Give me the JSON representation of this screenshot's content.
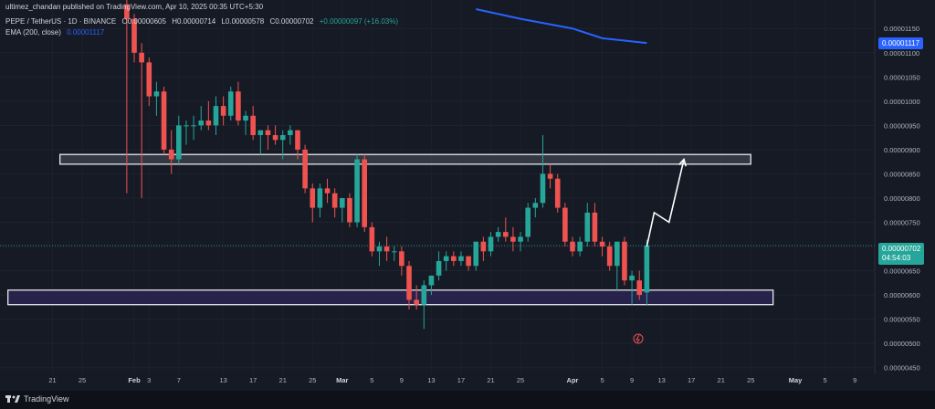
{
  "header": {
    "publisher": "ultimez_chandan published on TradingView.com, Apr 10, 2025 00:35 UTC+5:30",
    "symbol": "PEPE / TetherUS · 1D · BINANCE",
    "ohlc": {
      "o": "O0.00000605",
      "h": "H0.00000714",
      "l": "L0.00000578",
      "c": "C0.00000702",
      "chg": "+0.00000097 (+16.03%)"
    },
    "ema_label": "EMA (200, close)",
    "ema_value": "0.00001117"
  },
  "price_tags": {
    "ema": "0.00001117",
    "last": "0.00000702",
    "countdown": "04:54:03"
  },
  "footer": {
    "brand": "TradingView"
  },
  "colors": {
    "background": "#161a25",
    "up": "#26a69a",
    "down": "#ef5350",
    "ema": "#2962ff",
    "text": "#b2b5be",
    "zone_upper": "#3a3e48",
    "zone_lower": "#2a2550"
  },
  "chart_data": {
    "type": "candlestick",
    "x_ticks": [
      "21",
      "25",
      "Feb",
      "3",
      "7",
      "13",
      "17",
      "21",
      "25",
      "Mar",
      "5",
      "9",
      "13",
      "17",
      "21",
      "25",
      "Apr",
      "5",
      "9",
      "13",
      "17",
      "21",
      "25",
      "May",
      "5",
      "9"
    ],
    "y_ticks": [
      "0.00001150",
      "0.00001100",
      "0.00001050",
      "0.00001000",
      "0.00000950",
      "0.00000900",
      "0.00000850",
      "0.00000800",
      "0.00000750",
      "0.00000700",
      "0.00000650",
      "0.00000600",
      "0.00000550",
      "0.00000500",
      "0.00000450"
    ],
    "ylim": [
      4.4e-06,
      1.19e-05
    ],
    "candles": [
      {
        "date": "2025-01-31",
        "o": 1.2e-05,
        "h": 1.21e-05,
        "l": 8.1e-06,
        "c": 1.17e-05
      },
      {
        "date": "2025-02-01",
        "o": 1.17e-05,
        "h": 1.18e-05,
        "l": 1.08e-05,
        "c": 1.1e-05
      },
      {
        "date": "2025-02-02",
        "o": 1.1e-05,
        "h": 1.12e-05,
        "l": 8e-06,
        "c": 1.08e-05
      },
      {
        "date": "2025-02-03",
        "o": 1.08e-05,
        "h": 1.09e-05,
        "l": 9.9e-06,
        "c": 1.01e-05
      },
      {
        "date": "2025-02-04",
        "o": 1.01e-05,
        "h": 1.04e-05,
        "l": 9.7e-06,
        "c": 1.02e-05
      },
      {
        "date": "2025-02-05",
        "o": 1.02e-05,
        "h": 1.03e-05,
        "l": 8.9e-06,
        "c": 9e-06
      },
      {
        "date": "2025-02-06",
        "o": 9e-06,
        "h": 9.4e-06,
        "l": 8.5e-06,
        "c": 8.8e-06
      },
      {
        "date": "2025-02-07",
        "o": 8.8e-06,
        "h": 9.7e-06,
        "l": 8.7e-06,
        "c": 9.5e-06
      },
      {
        "date": "2025-02-08",
        "o": 9.5e-06,
        "h": 9.6e-06,
        "l": 9.1e-06,
        "c": 9.5e-06
      },
      {
        "date": "2025-02-09",
        "o": 9.5e-06,
        "h": 9.7e-06,
        "l": 9.2e-06,
        "c": 9.5e-06
      },
      {
        "date": "2025-02-10",
        "o": 9.5e-06,
        "h": 9.9e-06,
        "l": 9.4e-06,
        "c": 9.6e-06
      },
      {
        "date": "2025-02-11",
        "o": 9.6e-06,
        "h": 1e-05,
        "l": 9.4e-06,
        "c": 9.5e-06
      },
      {
        "date": "2025-02-12",
        "o": 9.5e-06,
        "h": 1.01e-05,
        "l": 9.3e-06,
        "c": 9.9e-06
      },
      {
        "date": "2025-02-13",
        "o": 9.9e-06,
        "h": 1.01e-05,
        "l": 9.5e-06,
        "c": 9.7e-06
      },
      {
        "date": "2025-02-14",
        "o": 9.7e-06,
        "h": 1.03e-05,
        "l": 9.6e-06,
        "c": 1.02e-05
      },
      {
        "date": "2025-02-15",
        "o": 1.02e-05,
        "h": 1.04e-05,
        "l": 9.5e-06,
        "c": 9.6e-06
      },
      {
        "date": "2025-02-16",
        "o": 9.6e-06,
        "h": 9.8e-06,
        "l": 9.3e-06,
        "c": 9.7e-06
      },
      {
        "date": "2025-02-17",
        "o": 9.7e-06,
        "h": 9.9e-06,
        "l": 9.2e-06,
        "c": 9.3e-06
      },
      {
        "date": "2025-02-18",
        "o": 9.3e-06,
        "h": 9.4e-06,
        "l": 8.9e-06,
        "c": 9.4e-06
      },
      {
        "date": "2025-02-19",
        "o": 9.4e-06,
        "h": 9.5e-06,
        "l": 9e-06,
        "c": 9.3e-06
      },
      {
        "date": "2025-02-20",
        "o": 9.3e-06,
        "h": 9.5e-06,
        "l": 9.1e-06,
        "c": 9.2e-06
      },
      {
        "date": "2025-02-21",
        "o": 9.2e-06,
        "h": 9.4e-06,
        "l": 8.8e-06,
        "c": 9.3e-06
      },
      {
        "date": "2025-02-22",
        "o": 9.3e-06,
        "h": 9.5e-06,
        "l": 9.1e-06,
        "c": 9.4e-06
      },
      {
        "date": "2025-02-23",
        "o": 9.4e-06,
        "h": 9.4e-06,
        "l": 8.8e-06,
        "c": 9e-06
      },
      {
        "date": "2025-02-24",
        "o": 9e-06,
        "h": 9.1e-06,
        "l": 8.1e-06,
        "c": 8.2e-06
      },
      {
        "date": "2025-02-25",
        "o": 8.2e-06,
        "h": 8.3e-06,
        "l": 7.5e-06,
        "c": 7.8e-06
      },
      {
        "date": "2025-02-26",
        "o": 7.8e-06,
        "h": 8.3e-06,
        "l": 7.6e-06,
        "c": 8.2e-06
      },
      {
        "date": "2025-02-27",
        "o": 8.2e-06,
        "h": 8.4e-06,
        "l": 7.9e-06,
        "c": 8.1e-06
      },
      {
        "date": "2025-02-28",
        "o": 8.1e-06,
        "h": 8.2e-06,
        "l": 7.6e-06,
        "c": 7.8e-06
      },
      {
        "date": "2025-03-01",
        "o": 7.8e-06,
        "h": 8e-06,
        "l": 7.5e-06,
        "c": 8e-06
      },
      {
        "date": "2025-03-02",
        "o": 8e-06,
        "h": 8.1e-06,
        "l": 7.4e-06,
        "c": 7.5e-06
      },
      {
        "date": "2025-03-03",
        "o": 7.5e-06,
        "h": 8.9e-06,
        "l": 7.4e-06,
        "c": 8.8e-06
      },
      {
        "date": "2025-03-04",
        "o": 8.8e-06,
        "h": 8.9e-06,
        "l": 7.3e-06,
        "c": 7.4e-06
      },
      {
        "date": "2025-03-05",
        "o": 7.4e-06,
        "h": 7.5e-06,
        "l": 6.8e-06,
        "c": 6.9e-06
      },
      {
        "date": "2025-03-06",
        "o": 6.9e-06,
        "h": 7.1e-06,
        "l": 6.6e-06,
        "c": 7e-06
      },
      {
        "date": "2025-03-07",
        "o": 7e-06,
        "h": 7.2e-06,
        "l": 6.7e-06,
        "c": 6.9e-06
      },
      {
        "date": "2025-03-08",
        "o": 6.9e-06,
        "h": 7e-06,
        "l": 6.7e-06,
        "c": 6.9e-06
      },
      {
        "date": "2025-03-09",
        "o": 6.9e-06,
        "h": 7e-06,
        "l": 6.4e-06,
        "c": 6.6e-06
      },
      {
        "date": "2025-03-10",
        "o": 6.6e-06,
        "h": 6.7e-06,
        "l": 5.7e-06,
        "c": 5.9e-06
      },
      {
        "date": "2025-03-11",
        "o": 5.9e-06,
        "h": 6.2e-06,
        "l": 5.7e-06,
        "c": 5.8e-06
      },
      {
        "date": "2025-03-12",
        "o": 5.8e-06,
        "h": 6.3e-06,
        "l": 5.3e-06,
        "c": 6.2e-06
      },
      {
        "date": "2025-03-13",
        "o": 6.2e-06,
        "h": 6.4e-06,
        "l": 6e-06,
        "c": 6.4e-06
      },
      {
        "date": "2025-03-14",
        "o": 6.4e-06,
        "h": 6.9e-06,
        "l": 6.3e-06,
        "c": 6.7e-06
      },
      {
        "date": "2025-03-15",
        "o": 6.7e-06,
        "h": 6.9e-06,
        "l": 6.5e-06,
        "c": 6.8e-06
      },
      {
        "date": "2025-03-16",
        "o": 6.8e-06,
        "h": 6.9e-06,
        "l": 6.6e-06,
        "c": 6.7e-06
      },
      {
        "date": "2025-03-17",
        "o": 6.7e-06,
        "h": 6.9e-06,
        "l": 6.6e-06,
        "c": 6.8e-06
      },
      {
        "date": "2025-03-18",
        "o": 6.8e-06,
        "h": 6.8e-06,
        "l": 6.5e-06,
        "c": 6.6e-06
      },
      {
        "date": "2025-03-19",
        "o": 6.6e-06,
        "h": 7.1e-06,
        "l": 6.5e-06,
        "c": 7.1e-06
      },
      {
        "date": "2025-03-20",
        "o": 7.1e-06,
        "h": 7.2e-06,
        "l": 6.7e-06,
        "c": 6.9e-06
      },
      {
        "date": "2025-03-21",
        "o": 6.9e-06,
        "h": 7.3e-06,
        "l": 6.8e-06,
        "c": 7.2e-06
      },
      {
        "date": "2025-03-22",
        "o": 7.2e-06,
        "h": 7.4e-06,
        "l": 7.1e-06,
        "c": 7.3e-06
      },
      {
        "date": "2025-03-23",
        "o": 7.3e-06,
        "h": 7.6e-06,
        "l": 7.1e-06,
        "c": 7.2e-06
      },
      {
        "date": "2025-03-24",
        "o": 7.2e-06,
        "h": 7.4e-06,
        "l": 6.9e-06,
        "c": 7.1e-06
      },
      {
        "date": "2025-03-25",
        "o": 7.1e-06,
        "h": 7.3e-06,
        "l": 6.9e-06,
        "c": 7.2e-06
      },
      {
        "date": "2025-03-26",
        "o": 7.2e-06,
        "h": 7.9e-06,
        "l": 7.1e-06,
        "c": 7.8e-06
      },
      {
        "date": "2025-03-27",
        "o": 7.8e-06,
        "h": 8e-06,
        "l": 7.6e-06,
        "c": 7.9e-06
      },
      {
        "date": "2025-03-28",
        "o": 7.9e-06,
        "h": 9.3e-06,
        "l": 7.8e-06,
        "c": 8.5e-06
      },
      {
        "date": "2025-03-29",
        "o": 8.5e-06,
        "h": 8.7e-06,
        "l": 8.2e-06,
        "c": 8.4e-06
      },
      {
        "date": "2025-03-30",
        "o": 8.4e-06,
        "h": 8.5e-06,
        "l": 7.7e-06,
        "c": 7.8e-06
      },
      {
        "date": "2025-03-31",
        "o": 7.8e-06,
        "h": 7.9e-06,
        "l": 7e-06,
        "c": 7.1e-06
      },
      {
        "date": "2025-04-01",
        "o": 7.1e-06,
        "h": 7.2e-06,
        "l": 6.8e-06,
        "c": 6.9e-06
      },
      {
        "date": "2025-04-02",
        "o": 6.9e-06,
        "h": 7.2e-06,
        "l": 6.8e-06,
        "c": 7.1e-06
      },
      {
        "date": "2025-04-03",
        "o": 7.1e-06,
        "h": 7.9e-06,
        "l": 7e-06,
        "c": 7.7e-06
      },
      {
        "date": "2025-04-04",
        "o": 7.7e-06,
        "h": 7.9e-06,
        "l": 7e-06,
        "c": 7.1e-06
      },
      {
        "date": "2025-04-05",
        "o": 7.1e-06,
        "h": 7.2e-06,
        "l": 6.8e-06,
        "c": 7e-06
      },
      {
        "date": "2025-04-06",
        "o": 7e-06,
        "h": 7.1e-06,
        "l": 6.5e-06,
        "c": 6.6e-06
      },
      {
        "date": "2025-04-07",
        "o": 6.6e-06,
        "h": 7.1e-06,
        "l": 6.1e-06,
        "c": 7.1e-06
      },
      {
        "date": "2025-04-08",
        "o": 7.1e-06,
        "h": 7.2e-06,
        "l": 6.2e-06,
        "c": 6.3e-06
      },
      {
        "date": "2025-04-09",
        "o": 6.3e-06,
        "h": 6.5e-06,
        "l": 5.8e-06,
        "c": 6.4e-06
      },
      {
        "date": "2025-04-10",
        "o": 6.3e-06,
        "h": 6.5e-06,
        "l": 5.9e-06,
        "c": 6e-06
      },
      {
        "date": "2025-04-11",
        "o": 6.05e-06,
        "h": 7.14e-06,
        "l": 5.78e-06,
        "c": 7.02e-06
      }
    ],
    "ema_line": [
      {
        "date": "2025-03-19",
        "value": 1.19e-05
      },
      {
        "date": "2025-03-25",
        "value": 1.17e-05
      },
      {
        "date": "2025-04-01",
        "value": 1.15e-05
      },
      {
        "date": "2025-04-05",
        "value": 1.13e-05
      },
      {
        "date": "2025-04-11",
        "value": 1.12e-05
      }
    ],
    "zones": [
      {
        "name": "resistance",
        "from_date": "2025-01-22",
        "to_date": "2025-04-25",
        "low": 8.7e-06,
        "high": 8.9e-06
      },
      {
        "name": "support",
        "from_date": "2025-01-15",
        "to_date": "2025-04-28",
        "low": 5.8e-06,
        "high": 6.1e-06
      }
    ],
    "projection": [
      {
        "date": "2025-04-11",
        "value": 7e-06
      },
      {
        "date": "2025-04-12",
        "value": 7.7e-06
      },
      {
        "date": "2025-04-14",
        "value": 7.5e-06
      },
      {
        "date": "2025-04-16",
        "value": 8.8e-06
      }
    ]
  }
}
